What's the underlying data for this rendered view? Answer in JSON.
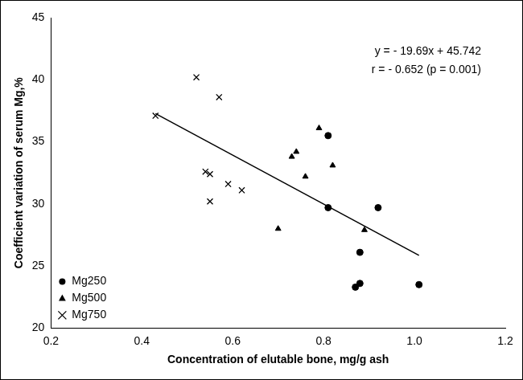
{
  "chart_data": {
    "type": "scatter",
    "x_label": "Concentration of elutable bone, mg/g ash",
    "y_label": "Coefficient variation of serum Mg,%",
    "annotations": [
      "y = - 19.69x + 45.742",
      "r = - 0.652 (p = 0.001)"
    ],
    "xlim": [
      0.2,
      1.2
    ],
    "xticks": [
      0.2,
      0.4,
      0.6,
      0.8,
      {
        "value": 1,
        "label": "1.0"
      },
      1.2
    ],
    "ylim": [
      20,
      45
    ],
    "yticks": [
      20,
      25,
      30,
      35,
      40,
      45
    ],
    "grid": false,
    "legend": "bottom left",
    "series": [
      {
        "name": "Mg250",
        "type": "scatter",
        "marker": "circle",
        "color": "#000000",
        "x": [
          0.81,
          0.81,
          0.92,
          0.88,
          0.87,
          0.88,
          1.01
        ],
        "values": [
          35.5,
          29.7,
          29.7,
          26.1,
          23.3,
          23.6,
          23.5
        ]
      },
      {
        "name": "Mg500",
        "type": "scatter",
        "marker": "triangle",
        "color": "#000000",
        "x": [
          0.79,
          0.73,
          0.74,
          0.82,
          0.76,
          0.7,
          0.89
        ],
        "values": [
          36.1,
          33.8,
          34.2,
          33.1,
          32.2,
          28.0,
          27.9
        ]
      },
      {
        "name": "Mg750",
        "type": "scatter",
        "marker": "x",
        "color": "#000000",
        "x": [
          0.52,
          0.57,
          0.43,
          0.54,
          0.55,
          0.59,
          0.62,
          0.55
        ],
        "values": [
          40.2,
          38.6,
          37.1,
          32.6,
          32.4,
          31.6,
          31.1,
          30.2
        ]
      },
      {
        "type": "line",
        "line_style": "solid",
        "color": "#000000",
        "x": [
          0.43,
          1.01
        ],
        "values": [
          37.28,
          25.86
        ]
      }
    ]
  }
}
